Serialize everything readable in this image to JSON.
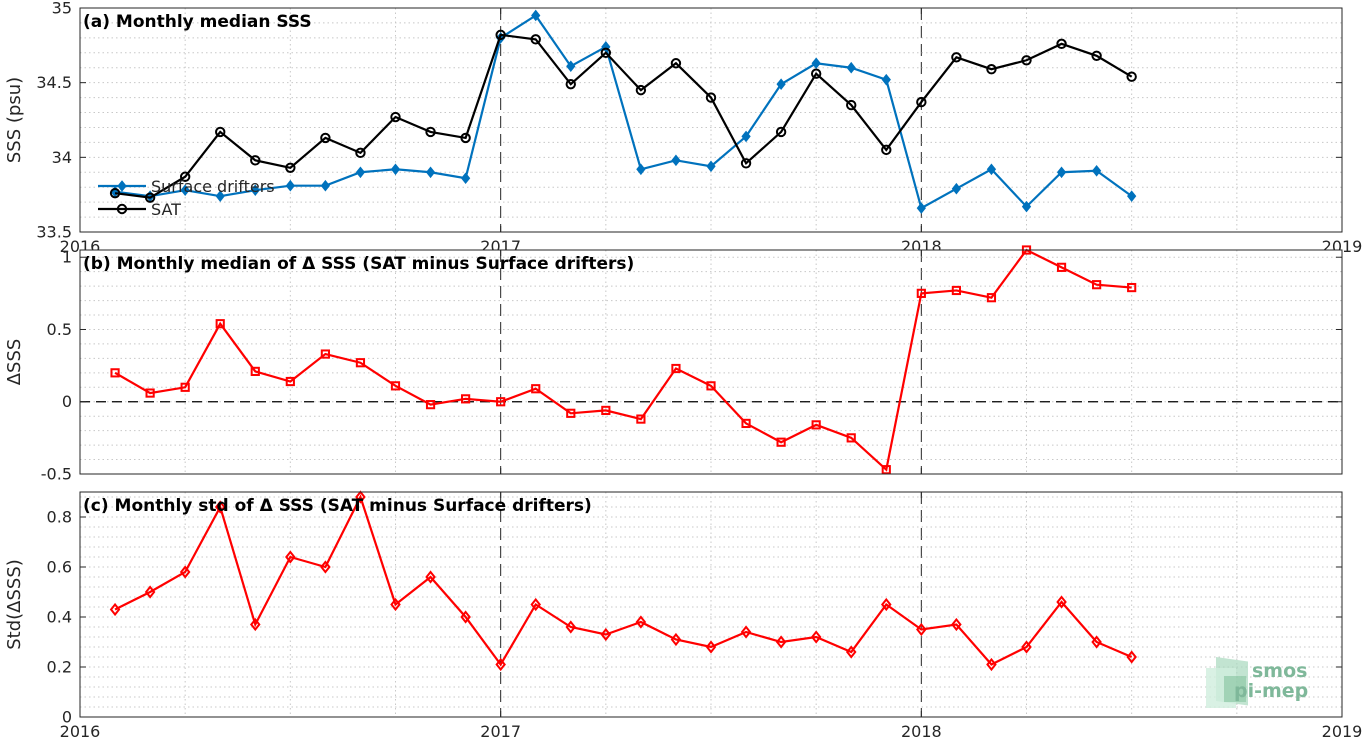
{
  "colors": {
    "drifters": "#0072BD",
    "sat": "#000000",
    "delta": "#FF0000",
    "grid": "#c8c8c8",
    "logo": "#7fb89a"
  },
  "logo": {
    "line1": "smos",
    "line2": "pi-mep"
  },
  "chart_data": [
    {
      "type": "line",
      "title": "(a) Monthly median SSS",
      "xlabel": "",
      "ylabel": "SSS (psu)",
      "x": [
        "2016-02",
        "2016-03",
        "2016-04",
        "2016-05",
        "2016-06",
        "2016-07",
        "2016-08",
        "2016-09",
        "2016-10",
        "2016-11",
        "2016-12",
        "2017-01",
        "2017-02",
        "2017-03",
        "2017-04",
        "2017-05",
        "2017-06",
        "2017-07",
        "2017-08",
        "2017-09",
        "2017-10",
        "2017-11",
        "2017-12",
        "2018-01",
        "2018-02",
        "2018-03",
        "2018-04",
        "2018-05",
        "2018-06",
        "2018-07"
      ],
      "xlim": [
        "2016-01",
        "2019-01"
      ],
      "xticks": [
        "2016",
        "2017",
        "2018",
        "2019"
      ],
      "ylim": [
        33.5,
        35
      ],
      "yticks": [
        "33.5",
        "34",
        "34.5",
        "35"
      ],
      "grid": true,
      "legend_position": "bottom-left",
      "series": [
        {
          "name": "Surface drifters",
          "marker": "diamond",
          "values": [
            33.77,
            33.74,
            33.78,
            33.74,
            33.78,
            33.81,
            33.81,
            33.9,
            33.92,
            33.9,
            33.86,
            34.8,
            34.95,
            34.61,
            34.74,
            33.92,
            33.98,
            33.94,
            34.14,
            34.49,
            34.63,
            34.6,
            34.52,
            33.66,
            33.79,
            33.92,
            33.67,
            33.9,
            33.91,
            33.74
          ]
        },
        {
          "name": "SAT",
          "marker": "circle",
          "values": [
            33.76,
            33.73,
            33.87,
            34.17,
            33.98,
            33.93,
            34.13,
            34.03,
            34.27,
            34.17,
            34.13,
            34.82,
            34.79,
            34.49,
            34.7,
            34.45,
            34.63,
            34.4,
            33.96,
            34.17,
            34.56,
            34.35,
            34.05,
            34.37,
            34.67,
            34.59,
            34.65,
            34.76,
            34.68,
            34.54
          ]
        }
      ]
    },
    {
      "type": "line",
      "title": "(b) Monthly median of Δ SSS (SAT minus Surface drifters)",
      "xlabel": "",
      "ylabel": "ΔSSS",
      "x": [
        "2016-02",
        "2016-03",
        "2016-04",
        "2016-05",
        "2016-06",
        "2016-07",
        "2016-08",
        "2016-09",
        "2016-10",
        "2016-11",
        "2016-12",
        "2017-01",
        "2017-02",
        "2017-03",
        "2017-04",
        "2017-05",
        "2017-06",
        "2017-07",
        "2017-08",
        "2017-09",
        "2017-10",
        "2017-11",
        "2017-12",
        "2018-01",
        "2018-02",
        "2018-03",
        "2018-04",
        "2018-05",
        "2018-06",
        "2018-07"
      ],
      "xlim": [
        "2016-01",
        "2019-01"
      ],
      "ylim": [
        -0.5,
        1.05
      ],
      "yticks": [
        "-0.5",
        "0",
        "0.5",
        "1"
      ],
      "grid": true,
      "zero_line": true,
      "series": [
        {
          "name": "",
          "marker": "square",
          "values": [
            0.2,
            0.06,
            0.1,
            0.54,
            0.21,
            0.14,
            0.33,
            0.27,
            0.11,
            -0.02,
            0.02,
            0.0,
            0.09,
            -0.08,
            -0.06,
            -0.12,
            0.23,
            0.11,
            -0.15,
            -0.28,
            -0.16,
            -0.25,
            -0.47,
            0.75,
            0.77,
            0.72,
            1.05,
            0.93,
            0.81,
            0.79
          ]
        }
      ]
    },
    {
      "type": "line",
      "title": "(c) Monthly std of Δ SSS (SAT minus Surface drifters)",
      "xlabel": "",
      "ylabel": "Std(ΔSSS)",
      "x": [
        "2016-02",
        "2016-03",
        "2016-04",
        "2016-05",
        "2016-06",
        "2016-07",
        "2016-08",
        "2016-09",
        "2016-10",
        "2016-11",
        "2016-12",
        "2017-01",
        "2017-02",
        "2017-03",
        "2017-04",
        "2017-05",
        "2017-06",
        "2017-07",
        "2017-08",
        "2017-09",
        "2017-10",
        "2017-11",
        "2017-12",
        "2018-01",
        "2018-02",
        "2018-03",
        "2018-04",
        "2018-05",
        "2018-06",
        "2018-07"
      ],
      "xlim": [
        "2016-01",
        "2019-01"
      ],
      "xticks": [
        "2016",
        "2017",
        "2018",
        "2019"
      ],
      "ylim": [
        0,
        0.9
      ],
      "yticks": [
        "0",
        "0.2",
        "0.4",
        "0.6",
        "0.8"
      ],
      "grid": true,
      "series": [
        {
          "name": "",
          "marker": "diamond",
          "values": [
            0.43,
            0.5,
            0.58,
            0.84,
            0.37,
            0.64,
            0.6,
            0.88,
            0.45,
            0.56,
            0.4,
            0.21,
            0.45,
            0.36,
            0.33,
            0.38,
            0.31,
            0.28,
            0.34,
            0.3,
            0.32,
            0.26,
            0.45,
            0.35,
            0.37,
            0.21,
            0.28,
            0.46,
            0.3,
            0.24
          ]
        }
      ]
    }
  ]
}
